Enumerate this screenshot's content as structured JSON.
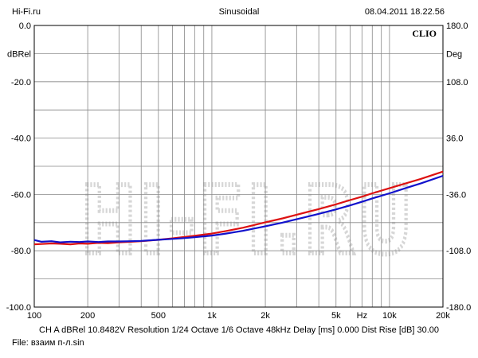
{
  "header": {
    "left": "Hi-Fi.ru",
    "center": "Sinusoidal",
    "right": "08.04.2011  18.22.56"
  },
  "footer": {
    "channel_info": "CH A   dBRel 10.8482V   Resolution 1/24 Octave   1/6 Octave   48kHz   Delay [ms] 0.000   Dist Rise [dB] 30.00",
    "file": "File: взаим п-л.sin"
  },
  "colors": {
    "series_red": "#dd1111",
    "series_blue": "#1111cc",
    "grid": "#888888",
    "watermark": "#d6d6d6"
  },
  "chart_data": {
    "type": "line",
    "brand_label": "CLIO",
    "watermark": "HI-FI.RU",
    "x_scale": "log",
    "xlim": [
      100,
      20000
    ],
    "ylim": [
      -100,
      0
    ],
    "y2lim": [
      -180,
      180
    ],
    "y_unit_label": "dBRel",
    "y2_unit_label": "Deg",
    "x_unit_label": "Hz",
    "x_ticks": [
      {
        "value": 100,
        "label": "100"
      },
      {
        "value": 200,
        "label": "200"
      },
      {
        "value": 500,
        "label": "500"
      },
      {
        "value": 1000,
        "label": "1k"
      },
      {
        "value": 2000,
        "label": "2k"
      },
      {
        "value": 5000,
        "label": "5k"
      },
      {
        "value": 10000,
        "label": "10k"
      },
      {
        "value": 20000,
        "label": "20k"
      }
    ],
    "y_ticks": [
      {
        "value": 0,
        "label": "0.0"
      },
      {
        "value": -20,
        "label": "-20.0"
      },
      {
        "value": -40,
        "label": "-40.0"
      },
      {
        "value": -60,
        "label": "-60.0"
      },
      {
        "value": -80,
        "label": "-80.0"
      },
      {
        "value": -100,
        "label": "-100.0"
      }
    ],
    "y2_ticks": [
      {
        "value": 180,
        "label": "180.0"
      },
      {
        "value": 108,
        "label": "108.0"
      },
      {
        "value": 36,
        "label": "36.0"
      },
      {
        "value": -36,
        "label": "-36.0"
      },
      {
        "value": -108,
        "label": "-108.0"
      },
      {
        "value": -180,
        "label": "-180.0"
      }
    ],
    "grid": true,
    "series": [
      {
        "color": "#dd1111",
        "x": [
          100,
          110,
          125,
          140,
          160,
          180,
          200,
          230,
          260,
          300,
          350,
          400,
          500,
          600,
          700,
          800,
          1000,
          1200,
          1500,
          2000,
          2500,
          3000,
          4000,
          5000,
          6000,
          7000,
          8000,
          10000,
          12000,
          15000,
          20000
        ],
        "y": [
          -77.7,
          -77.6,
          -77.4,
          -77.5,
          -77.7,
          -77.4,
          -77.5,
          -77.2,
          -77.3,
          -77.0,
          -76.8,
          -76.6,
          -76.1,
          -75.6,
          -75.1,
          -74.7,
          -73.9,
          -73.0,
          -71.8,
          -69.9,
          -68.5,
          -67.2,
          -65.2,
          -63.5,
          -62.0,
          -60.8,
          -59.6,
          -57.8,
          -56.3,
          -54.5,
          -51.9
        ]
      },
      {
        "color": "#1111cc",
        "x": [
          100,
          110,
          125,
          140,
          160,
          180,
          200,
          230,
          260,
          300,
          350,
          400,
          500,
          600,
          700,
          800,
          1000,
          1200,
          1500,
          2000,
          2500,
          3000,
          4000,
          5000,
          6000,
          7000,
          8000,
          10000,
          12000,
          15000,
          20000
        ],
        "y": [
          -76.2,
          -76.8,
          -76.6,
          -77.0,
          -76.8,
          -76.9,
          -76.7,
          -76.9,
          -76.7,
          -76.7,
          -76.6,
          -76.5,
          -76.1,
          -75.8,
          -75.5,
          -75.2,
          -74.6,
          -73.9,
          -72.9,
          -71.3,
          -70.0,
          -68.8,
          -66.9,
          -65.3,
          -63.9,
          -62.6,
          -61.4,
          -59.6,
          -58.0,
          -56.1,
          -53.4
        ]
      }
    ]
  }
}
